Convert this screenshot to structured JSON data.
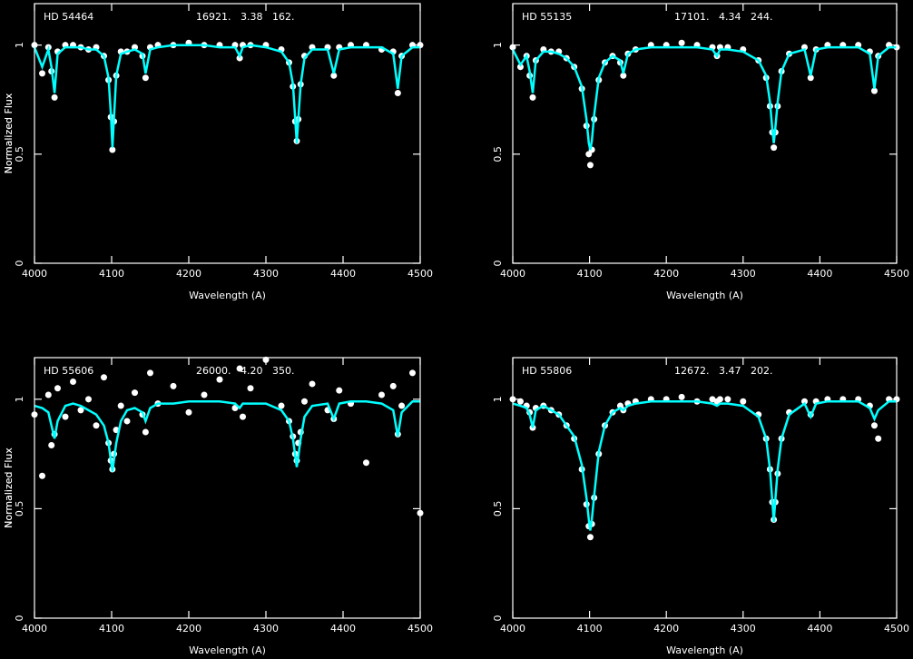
{
  "chart_data": [
    {
      "type": "spectrum",
      "label": "HD 54464",
      "parameters": "16921.   3.38   162.",
      "x_label": "Wavelength (A)",
      "y_label": "Normalized Flux",
      "xlim": [
        4000,
        4500
      ],
      "xticks": [
        4000,
        4100,
        4200,
        4300,
        4400,
        4500
      ],
      "ylim": [
        0,
        1.19
      ],
      "yticks": [
        0,
        0.5,
        1
      ],
      "x": [
        4000,
        4010,
        4018,
        4022,
        4026,
        4030,
        4040,
        4050,
        4060,
        4070,
        4080,
        4090,
        4096,
        4099,
        4101,
        4103,
        4106,
        4112,
        4120,
        4130,
        4140,
        4144,
        4150,
        4160,
        4180,
        4200,
        4220,
        4240,
        4260,
        4266,
        4270,
        4280,
        4300,
        4320,
        4330,
        4335,
        4338,
        4340,
        4342,
        4345,
        4350,
        4360,
        4380,
        4388,
        4395,
        4410,
        4430,
        4450,
        4465,
        4471,
        4476,
        4490,
        4500
      ],
      "series": [
        {
          "style": "points",
          "color": "#ffffff",
          "values": [
            1.0,
            0.87,
            0.99,
            0.88,
            0.76,
            0.97,
            1.0,
            1.0,
            0.99,
            0.98,
            0.99,
            0.95,
            0.84,
            0.67,
            0.52,
            0.65,
            0.86,
            0.97,
            0.97,
            0.99,
            0.95,
            0.85,
            0.99,
            1.0,
            1.0,
            1.01,
            1.0,
            1.0,
            1.0,
            0.94,
            1.0,
            1.0,
            1.0,
            0.98,
            0.92,
            0.81,
            0.65,
            0.56,
            0.66,
            0.82,
            0.95,
            0.99,
            0.99,
            0.86,
            0.99,
            1.0,
            1.0,
            0.98,
            0.97,
            0.78,
            0.95,
            1.0,
            1.0
          ]
        },
        {
          "style": "line",
          "color": "#00ffff",
          "values": [
            0.99,
            0.9,
            0.98,
            0.9,
            0.78,
            0.96,
            0.99,
            0.99,
            0.99,
            0.98,
            0.98,
            0.95,
            0.85,
            0.68,
            0.53,
            0.66,
            0.86,
            0.96,
            0.97,
            0.98,
            0.96,
            0.87,
            0.98,
            0.99,
            1.0,
            1.0,
            1.0,
            0.99,
            0.99,
            0.95,
            0.99,
            1.0,
            0.99,
            0.97,
            0.92,
            0.82,
            0.66,
            0.55,
            0.66,
            0.82,
            0.94,
            0.98,
            0.98,
            0.87,
            0.98,
            0.99,
            0.99,
            0.99,
            0.96,
            0.8,
            0.95,
            0.99,
            0.99
          ]
        }
      ]
    },
    {
      "type": "spectrum",
      "label": "HD 55135",
      "parameters": "17101.   4.34   244.",
      "x_label": "Wavelength (A)",
      "y_label": "Normalized Flux",
      "xlim": [
        4000,
        4500
      ],
      "xticks": [
        4000,
        4100,
        4200,
        4300,
        4400,
        4500
      ],
      "ylim": [
        0,
        1.19
      ],
      "yticks": [
        0,
        0.5,
        1
      ],
      "x": [
        4000,
        4010,
        4018,
        4022,
        4026,
        4030,
        4040,
        4050,
        4060,
        4070,
        4080,
        4090,
        4096,
        4099,
        4101,
        4103,
        4106,
        4112,
        4120,
        4130,
        4140,
        4144,
        4150,
        4160,
        4180,
        4200,
        4220,
        4240,
        4260,
        4266,
        4270,
        4280,
        4300,
        4320,
        4330,
        4335,
        4338,
        4340,
        4342,
        4345,
        4350,
        4360,
        4380,
        4388,
        4395,
        4410,
        4430,
        4450,
        4465,
        4471,
        4476,
        4490,
        4500
      ],
      "series": [
        {
          "style": "points",
          "color": "#ffffff",
          "values": [
            0.99,
            0.9,
            0.95,
            0.86,
            0.76,
            0.93,
            0.98,
            0.97,
            0.97,
            0.94,
            0.9,
            0.8,
            0.63,
            0.5,
            0.45,
            0.52,
            0.66,
            0.84,
            0.92,
            0.95,
            0.92,
            0.86,
            0.96,
            0.98,
            1.0,
            1.0,
            1.01,
            1.0,
            0.99,
            0.95,
            0.99,
            0.99,
            0.98,
            0.93,
            0.85,
            0.72,
            0.6,
            0.53,
            0.6,
            0.72,
            0.88,
            0.96,
            0.99,
            0.85,
            0.98,
            1.0,
            1.0,
            1.0,
            0.97,
            0.79,
            0.95,
            1.0,
            0.99
          ]
        },
        {
          "style": "line",
          "color": "#00ffff",
          "values": [
            0.98,
            0.91,
            0.95,
            0.88,
            0.78,
            0.93,
            0.97,
            0.97,
            0.96,
            0.94,
            0.9,
            0.81,
            0.66,
            0.55,
            0.52,
            0.56,
            0.68,
            0.85,
            0.92,
            0.95,
            0.93,
            0.87,
            0.96,
            0.98,
            0.99,
            0.99,
            0.99,
            0.99,
            0.98,
            0.95,
            0.98,
            0.98,
            0.97,
            0.93,
            0.86,
            0.74,
            0.62,
            0.55,
            0.62,
            0.74,
            0.88,
            0.96,
            0.98,
            0.86,
            0.98,
            0.99,
            0.99,
            0.99,
            0.96,
            0.8,
            0.95,
            0.99,
            0.99
          ]
        }
      ]
    },
    {
      "type": "spectrum",
      "label": "HD 55606",
      "parameters": "26000.   4.20   350.",
      "x_label": "Wavelength (A)",
      "y_label": "Normalized Flux",
      "xlim": [
        4000,
        4500
      ],
      "xticks": [
        4000,
        4100,
        4200,
        4300,
        4400,
        4500
      ],
      "ylim": [
        0,
        1.19
      ],
      "yticks": [
        0,
        0.5,
        1
      ],
      "x": [
        4000,
        4010,
        4018,
        4022,
        4026,
        4030,
        4040,
        4050,
        4060,
        4070,
        4080,
        4090,
        4096,
        4099,
        4101,
        4103,
        4106,
        4112,
        4120,
        4130,
        4140,
        4144,
        4150,
        4160,
        4180,
        4200,
        4220,
        4240,
        4260,
        4266,
        4270,
        4280,
        4300,
        4320,
        4330,
        4335,
        4338,
        4340,
        4342,
        4345,
        4350,
        4360,
        4380,
        4388,
        4395,
        4410,
        4430,
        4450,
        4465,
        4471,
        4476,
        4490,
        4500
      ],
      "series": [
        {
          "style": "points",
          "color": "#ffffff",
          "values": [
            0.93,
            0.65,
            1.02,
            0.79,
            0.84,
            1.05,
            0.92,
            1.08,
            0.95,
            1.0,
            0.88,
            1.1,
            0.8,
            0.72,
            0.68,
            0.75,
            0.86,
            0.97,
            0.9,
            1.03,
            0.93,
            0.85,
            1.12,
            0.98,
            1.06,
            0.94,
            1.02,
            1.09,
            0.96,
            1.14,
            0.92,
            1.05,
            1.18,
            0.97,
            0.9,
            0.83,
            0.75,
            0.72,
            0.8,
            0.85,
            0.99,
            1.07,
            0.95,
            0.91,
            1.04,
            0.98,
            0.71,
            1.02,
            1.06,
            0.84,
            0.97,
            1.12,
            0.48
          ]
        },
        {
          "style": "line",
          "color": "#00ffff",
          "values": [
            0.97,
            0.96,
            0.94,
            0.88,
            0.82,
            0.9,
            0.97,
            0.98,
            0.97,
            0.95,
            0.93,
            0.88,
            0.8,
            0.72,
            0.67,
            0.72,
            0.8,
            0.9,
            0.95,
            0.96,
            0.94,
            0.9,
            0.96,
            0.98,
            0.98,
            0.99,
            0.99,
            0.99,
            0.98,
            0.96,
            0.98,
            0.98,
            0.98,
            0.95,
            0.9,
            0.82,
            0.74,
            0.69,
            0.74,
            0.82,
            0.92,
            0.97,
            0.98,
            0.91,
            0.98,
            0.99,
            0.99,
            0.98,
            0.95,
            0.83,
            0.94,
            0.99,
            0.99
          ]
        }
      ]
    },
    {
      "type": "spectrum",
      "label": "HD 55806",
      "parameters": "12672.   3.47   202.",
      "x_label": "Wavelength (A)",
      "y_label": "Normalized Flux",
      "xlim": [
        4000,
        4500
      ],
      "xticks": [
        4000,
        4100,
        4200,
        4300,
        4400,
        4500
      ],
      "ylim": [
        0,
        1.19
      ],
      "yticks": [
        0,
        0.5,
        1
      ],
      "x": [
        4000,
        4010,
        4018,
        4022,
        4026,
        4030,
        4040,
        4050,
        4060,
        4070,
        4080,
        4090,
        4096,
        4099,
        4101,
        4103,
        4106,
        4112,
        4120,
        4130,
        4140,
        4144,
        4150,
        4160,
        4180,
        4200,
        4220,
        4240,
        4260,
        4266,
        4270,
        4280,
        4300,
        4320,
        4330,
        4335,
        4338,
        4340,
        4342,
        4345,
        4350,
        4360,
        4380,
        4388,
        4395,
        4410,
        4430,
        4450,
        4465,
        4471,
        4476,
        4490,
        4500
      ],
      "series": [
        {
          "style": "points",
          "color": "#ffffff",
          "values": [
            1.0,
            0.99,
            0.97,
            0.94,
            0.87,
            0.96,
            0.97,
            0.95,
            0.93,
            0.88,
            0.82,
            0.68,
            0.52,
            0.42,
            0.37,
            0.43,
            0.55,
            0.75,
            0.88,
            0.94,
            0.97,
            0.95,
            0.98,
            0.99,
            1.0,
            1.0,
            1.01,
            0.99,
            1.0,
            0.99,
            1.0,
            1.0,
            0.99,
            0.93,
            0.82,
            0.68,
            0.53,
            0.45,
            0.53,
            0.66,
            0.82,
            0.94,
            0.99,
            0.93,
            0.99,
            1.0,
            1.0,
            1.0,
            0.97,
            0.88,
            0.82,
            1.0,
            1.0
          ]
        },
        {
          "style": "line",
          "color": "#00ffff",
          "values": [
            0.98,
            0.97,
            0.96,
            0.93,
            0.87,
            0.95,
            0.97,
            0.95,
            0.93,
            0.88,
            0.83,
            0.7,
            0.55,
            0.45,
            0.4,
            0.45,
            0.56,
            0.76,
            0.88,
            0.94,
            0.96,
            0.95,
            0.97,
            0.98,
            0.99,
            0.99,
            0.99,
            0.99,
            0.98,
            0.97,
            0.98,
            0.98,
            0.97,
            0.92,
            0.82,
            0.68,
            0.54,
            0.44,
            0.54,
            0.68,
            0.82,
            0.93,
            0.98,
            0.92,
            0.98,
            0.99,
            0.99,
            0.99,
            0.96,
            0.91,
            0.95,
            0.99,
            0.99
          ]
        }
      ]
    }
  ]
}
